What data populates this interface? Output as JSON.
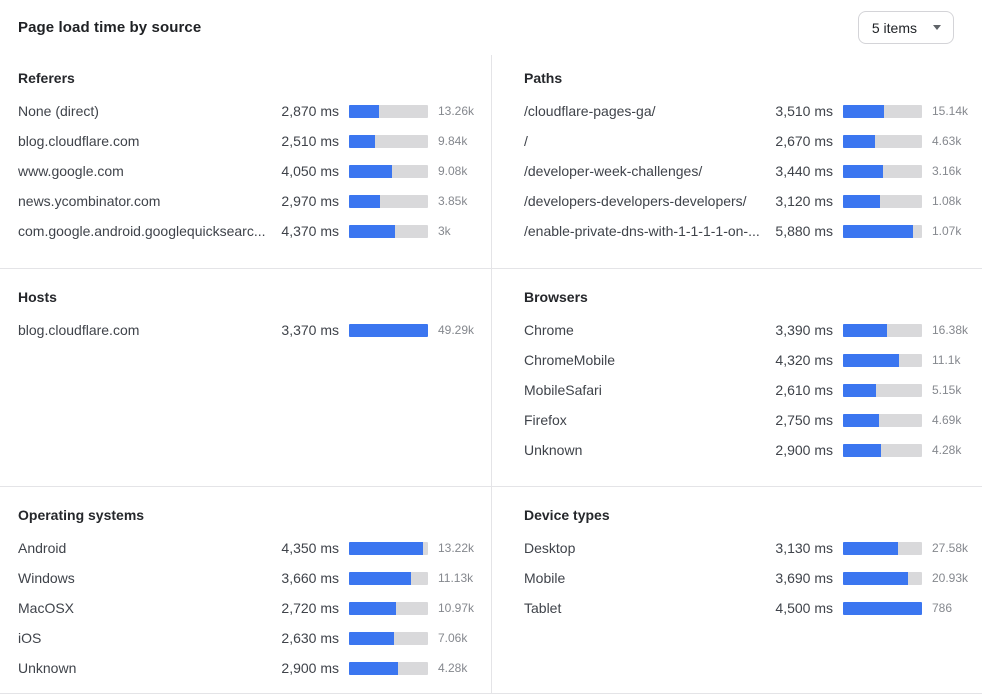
{
  "header": {
    "title": "Page load time by source",
    "dropdown": {
      "value": "5 items",
      "icon": "chevron-down-icon"
    }
  },
  "colors": {
    "bar_fill": "#3b76f0",
    "bar_track": "#d9d9db",
    "divider": "#e4e4e7"
  },
  "units": "ms",
  "panels": [
    {
      "title": "Referers",
      "bar_scale_max_ms": 7550,
      "rows": [
        {
          "label": "None (direct)",
          "ms": 2870,
          "ms_text": "2,870 ms",
          "count": "13.26k",
          "fill_pct": 38
        },
        {
          "label": "blog.cloudflare.com",
          "ms": 2510,
          "ms_text": "2,510 ms",
          "count": "9.84k",
          "fill_pct": 33
        },
        {
          "label": "www.google.com",
          "ms": 4050,
          "ms_text": "4,050 ms",
          "count": "9.08k",
          "fill_pct": 54
        },
        {
          "label": "news.ycombinator.com",
          "ms": 2970,
          "ms_text": "2,970 ms",
          "count": "3.85k",
          "fill_pct": 39
        },
        {
          "label": "com.google.android.googlequicksearc...",
          "ms": 4370,
          "ms_text": "4,370 ms",
          "count": "3k",
          "fill_pct": 58
        }
      ]
    },
    {
      "title": "Paths",
      "bar_scale_max_ms": 6700,
      "rows": [
        {
          "label": "/cloudflare-pages-ga/",
          "ms": 3510,
          "ms_text": "3,510 ms",
          "count": "15.14k",
          "fill_pct": 52
        },
        {
          "label": "/",
          "ms": 2670,
          "ms_text": "2,670 ms",
          "count": "4.63k",
          "fill_pct": 40
        },
        {
          "label": "/developer-week-challenges/",
          "ms": 3440,
          "ms_text": "3,440 ms",
          "count": "3.16k",
          "fill_pct": 51
        },
        {
          "label": "/developers-developers-developers/",
          "ms": 3120,
          "ms_text": "3,120 ms",
          "count": "1.08k",
          "fill_pct": 47
        },
        {
          "label": "/enable-private-dns-with-1-1-1-1-on-...",
          "ms": 5880,
          "ms_text": "5,880 ms",
          "count": "1.07k",
          "fill_pct": 88
        }
      ]
    },
    {
      "title": "Hosts",
      "bar_scale_max_ms": 3370,
      "rows": [
        {
          "label": "blog.cloudflare.com",
          "ms": 3370,
          "ms_text": "3,370 ms",
          "count": "49.29k",
          "fill_pct": 100
        }
      ]
    },
    {
      "title": "Browsers",
      "bar_scale_max_ms": 6050,
      "rows": [
        {
          "label": "Chrome",
          "ms": 3390,
          "ms_text": "3,390 ms",
          "count": "16.38k",
          "fill_pct": 56
        },
        {
          "label": "ChromeMobile",
          "ms": 4320,
          "ms_text": "4,320 ms",
          "count": "11.1k",
          "fill_pct": 71
        },
        {
          "label": "MobileSafari",
          "ms": 2610,
          "ms_text": "2,610 ms",
          "count": "5.15k",
          "fill_pct": 42
        },
        {
          "label": "Firefox",
          "ms": 2750,
          "ms_text": "2,750 ms",
          "count": "4.69k",
          "fill_pct": 45
        },
        {
          "label": "Unknown",
          "ms": 2900,
          "ms_text": "2,900 ms",
          "count": "4.28k",
          "fill_pct": 48
        }
      ]
    },
    {
      "title": "Operating systems",
      "bar_scale_max_ms": 4650,
      "rows": [
        {
          "label": "Android",
          "ms": 4350,
          "ms_text": "4,350 ms",
          "count": "13.22k",
          "fill_pct": 94
        },
        {
          "label": "Windows",
          "ms": 3660,
          "ms_text": "3,660 ms",
          "count": "11.13k",
          "fill_pct": 79
        },
        {
          "label": "MacOSX",
          "ms": 2720,
          "ms_text": "2,720 ms",
          "count": "10.97k",
          "fill_pct": 59
        },
        {
          "label": "iOS",
          "ms": 2630,
          "ms_text": "2,630 ms",
          "count": "7.06k",
          "fill_pct": 57
        },
        {
          "label": "Unknown",
          "ms": 2900,
          "ms_text": "2,900 ms",
          "count": "4.28k",
          "fill_pct": 62
        }
      ]
    },
    {
      "title": "Device types",
      "bar_scale_max_ms": 4500,
      "rows": [
        {
          "label": "Desktop",
          "ms": 3130,
          "ms_text": "3,130 ms",
          "count": "27.58k",
          "fill_pct": 70
        },
        {
          "label": "Mobile",
          "ms": 3690,
          "ms_text": "3,690 ms",
          "count": "20.93k",
          "fill_pct": 82
        },
        {
          "label": "Tablet",
          "ms": 4500,
          "ms_text": "4,500 ms",
          "count": "786",
          "fill_pct": 100
        }
      ]
    }
  ]
}
